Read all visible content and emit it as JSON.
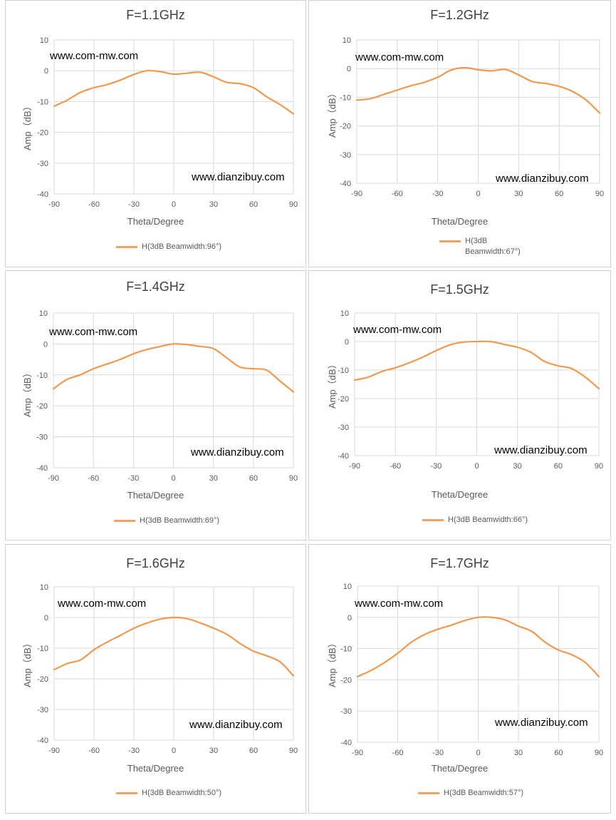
{
  "colors": {
    "series": "#F0994E",
    "grid": "#D9D9D9",
    "axis_text": "#595959",
    "title": "#404040"
  },
  "chart_data": [
    {
      "type": "line",
      "title": "F=1.1GHz",
      "xlabel": "Theta/Degree",
      "ylabel": "Amp（dB）",
      "xlim": [
        -90,
        90
      ],
      "ylim": [
        -40,
        10
      ],
      "xticks": [
        -90,
        -60,
        -30,
        0,
        30,
        60,
        90
      ],
      "yticks": [
        -40,
        -30,
        -20,
        -10,
        0,
        10
      ],
      "grid": true,
      "legend": "bottom",
      "watermarks": [
        "www.com-mw.com",
        "www.dianzibuy.com"
      ],
      "series": [
        {
          "name": "H(3dB Beamwidth:96°)",
          "x": [
            -90,
            -80,
            -70,
            -60,
            -50,
            -40,
            -30,
            -20,
            -10,
            0,
            10,
            20,
            30,
            40,
            50,
            60,
            70,
            80,
            90
          ],
          "y": [
            -11.5,
            -9.5,
            -7,
            -5.5,
            -4.5,
            -3,
            -1.2,
            0,
            -0.3,
            -1.1,
            -0.8,
            -0.5,
            -2,
            -3.8,
            -4.2,
            -5.5,
            -8.5,
            -11,
            -14
          ]
        }
      ]
    },
    {
      "type": "line",
      "title": "F=1.2GHz",
      "xlabel": "Theta/Degree",
      "ylabel": "Amp（dB）",
      "xlim": [
        -90,
        90
      ],
      "ylim": [
        -40,
        10
      ],
      "xticks": [
        -90,
        -60,
        -30,
        0,
        30,
        60,
        90
      ],
      "yticks": [
        -40,
        -30,
        -20,
        -10,
        0,
        10
      ],
      "grid": true,
      "legend": "bottom",
      "watermarks": [
        "www.com-mw.com",
        "www.dianzibuy.com"
      ],
      "series": [
        {
          "name": "H(3dB Beamwidth:67°)",
          "x": [
            -90,
            -80,
            -70,
            -60,
            -50,
            -40,
            -30,
            -20,
            -10,
            0,
            10,
            20,
            30,
            40,
            50,
            60,
            70,
            80,
            90
          ],
          "y": [
            -11,
            -10.5,
            -9,
            -7.5,
            -6,
            -4.8,
            -3,
            -0.5,
            0.3,
            -0.4,
            -0.8,
            -0.3,
            -2.2,
            -4.5,
            -5.2,
            -6.2,
            -8,
            -11,
            -15.5
          ]
        }
      ]
    },
    {
      "type": "line",
      "title": "F=1.4GHz",
      "xlabel": "Theta/Degree",
      "ylabel": "Amp（dB）",
      "xlim": [
        -90,
        90
      ],
      "ylim": [
        -40,
        10
      ],
      "xticks": [
        -90,
        -60,
        -30,
        0,
        30,
        60,
        90
      ],
      "yticks": [
        -40,
        -30,
        -20,
        -10,
        0,
        10
      ],
      "grid": true,
      "legend": "bottom",
      "watermarks": [
        "www.com-mw.com",
        "www.dianzibuy.com"
      ],
      "series": [
        {
          "name": "H(3dB Beamwidth:69°)",
          "x": [
            -90,
            -80,
            -70,
            -60,
            -50,
            -40,
            -30,
            -20,
            -10,
            0,
            10,
            20,
            30,
            40,
            50,
            60,
            70,
            80,
            90
          ],
          "y": [
            -14.5,
            -11.5,
            -10,
            -8,
            -6.5,
            -5,
            -3.2,
            -1.8,
            -0.8,
            0,
            -0.2,
            -0.8,
            -1.5,
            -4.5,
            -7.5,
            -8,
            -8.5,
            -12,
            -15.5
          ]
        }
      ]
    },
    {
      "type": "line",
      "title": "F=1.5GHz",
      "xlabel": "Theta/Degree",
      "ylabel": "Amp（dB）",
      "xlim": [
        -90,
        90
      ],
      "ylim": [
        -40,
        10
      ],
      "xticks": [
        -90,
        -60,
        -30,
        0,
        30,
        60,
        90
      ],
      "yticks": [
        -40,
        -30,
        -20,
        -10,
        0,
        10
      ],
      "grid": true,
      "legend": "bottom",
      "watermarks": [
        "www.com-mw.com",
        "www.dianzibuy.com"
      ],
      "series": [
        {
          "name": "H(3dB Beamwidth:66°)",
          "x": [
            -90,
            -80,
            -70,
            -60,
            -50,
            -40,
            -30,
            -20,
            -10,
            0,
            10,
            20,
            30,
            40,
            50,
            60,
            70,
            80,
            90
          ],
          "y": [
            -13.5,
            -12.5,
            -10.5,
            -9.2,
            -7.5,
            -5.5,
            -3.2,
            -1.2,
            -0.2,
            0,
            0,
            -1,
            -2,
            -3.8,
            -7,
            -8.5,
            -9.5,
            -12.5,
            -16.5
          ]
        }
      ]
    },
    {
      "type": "line",
      "title": "F=1.6GHz",
      "xlabel": "Theta/Degree",
      "ylabel": "Amp（dB）",
      "xlim": [
        -90,
        90
      ],
      "ylim": [
        -40,
        10
      ],
      "xticks": [
        -90,
        -60,
        -30,
        0,
        30,
        60,
        90
      ],
      "yticks": [
        -40,
        -30,
        -20,
        -10,
        0,
        10
      ],
      "grid": true,
      "legend": "bottom",
      "watermarks": [
        "www.com-mw.com",
        "www.dianzibuy.com"
      ],
      "series": [
        {
          "name": "H(3dB Beamwidth:50°)",
          "x": [
            -90,
            -80,
            -70,
            -60,
            -50,
            -40,
            -30,
            -20,
            -10,
            0,
            10,
            20,
            30,
            40,
            50,
            60,
            70,
            80,
            90
          ],
          "y": [
            -17,
            -15,
            -13.8,
            -10.5,
            -8,
            -5.8,
            -3.5,
            -1.8,
            -0.5,
            0,
            -0.4,
            -1.8,
            -3.5,
            -5.5,
            -8.5,
            -11,
            -12.5,
            -14.5,
            -19
          ]
        }
      ]
    },
    {
      "type": "line",
      "title": "F=1.7GHz",
      "xlabel": "Theta/Degree",
      "ylabel": "Amp（dB）",
      "xlim": [
        -90,
        90
      ],
      "ylim": [
        -40,
        10
      ],
      "xticks": [
        -90,
        -60,
        -30,
        0,
        30,
        60,
        90
      ],
      "yticks": [
        -40,
        -30,
        -20,
        -10,
        0,
        10
      ],
      "grid": true,
      "legend": "bottom",
      "watermarks": [
        "www.com-mw.com",
        "www.dianzibuy.com"
      ],
      "series": [
        {
          "name": "H(3dB Beamwidth:57°)",
          "x": [
            -90,
            -80,
            -70,
            -60,
            -50,
            -40,
            -30,
            -20,
            -10,
            0,
            10,
            20,
            30,
            40,
            50,
            60,
            70,
            80,
            90
          ],
          "y": [
            -19,
            -17,
            -14.5,
            -11.5,
            -8,
            -5.5,
            -3.8,
            -2.5,
            -1,
            0,
            0,
            -0.8,
            -2.8,
            -4.5,
            -8,
            -10.5,
            -12,
            -14.5,
            -19
          ]
        }
      ]
    }
  ]
}
